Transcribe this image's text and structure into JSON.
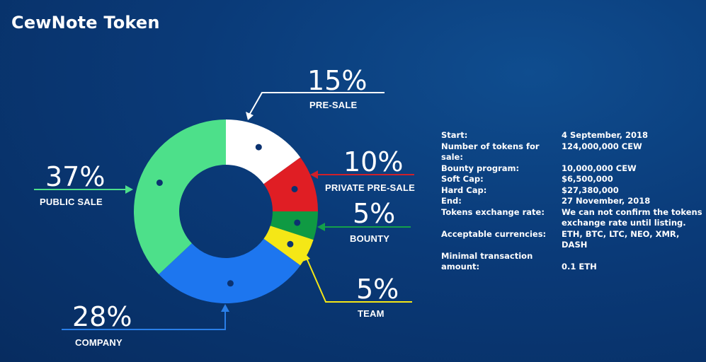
{
  "page": {
    "title": "CewNote Token"
  },
  "chart_data": {
    "type": "pie",
    "donut": true,
    "slices": [
      {
        "label": "PRE-SALE",
        "value": 15,
        "percent": "15%",
        "color": "#ffffff",
        "leader_color": "#ffffff"
      },
      {
        "label": "PRIVATE PRE-SALE",
        "value": 10,
        "percent": "10%",
        "color": "#e01e24",
        "leader_color": "#d0202a"
      },
      {
        "label": "BOUNTY",
        "value": 5,
        "percent": "5%",
        "color": "#0f9a43",
        "leader_color": "#14a04a"
      },
      {
        "label": "TEAM",
        "value": 5,
        "percent": "5%",
        "color": "#f5e716",
        "leader_color": "#f5e716"
      },
      {
        "label": "COMPANY",
        "value": 28,
        "percent": "28%",
        "color": "#1d76ef",
        "leader_color": "#2a7fe8"
      },
      {
        "label": "PUBLIC SALE",
        "value": 37,
        "percent": "37%",
        "color": "#4de08a",
        "leader_color": "#4de08a"
      }
    ]
  },
  "info": [
    {
      "key": "Start:",
      "value": "4 September, 2018"
    },
    {
      "key": "Number of tokens for sale:",
      "value": "124,000,000 CEW"
    },
    {
      "key": "Bounty program:",
      "value": "10,000,000 CEW"
    },
    {
      "key": "Soft Cap:",
      "value": "$6,500,000"
    },
    {
      "key": "Hard Cap:",
      "value": "$27,380,000"
    },
    {
      "key": "End:",
      "value": "27 November, 2018"
    },
    {
      "key": "Tokens exchange rate:",
      "value": "We can not confirm the tokens exchange rate until listing."
    },
    {
      "key": "Acceptable currencies:",
      "value": "ETH, BTC, LTC, NEO, XMR, DASH"
    },
    {
      "key": "Minimal transaction amount:",
      "value": "0.1 ETH"
    }
  ]
}
